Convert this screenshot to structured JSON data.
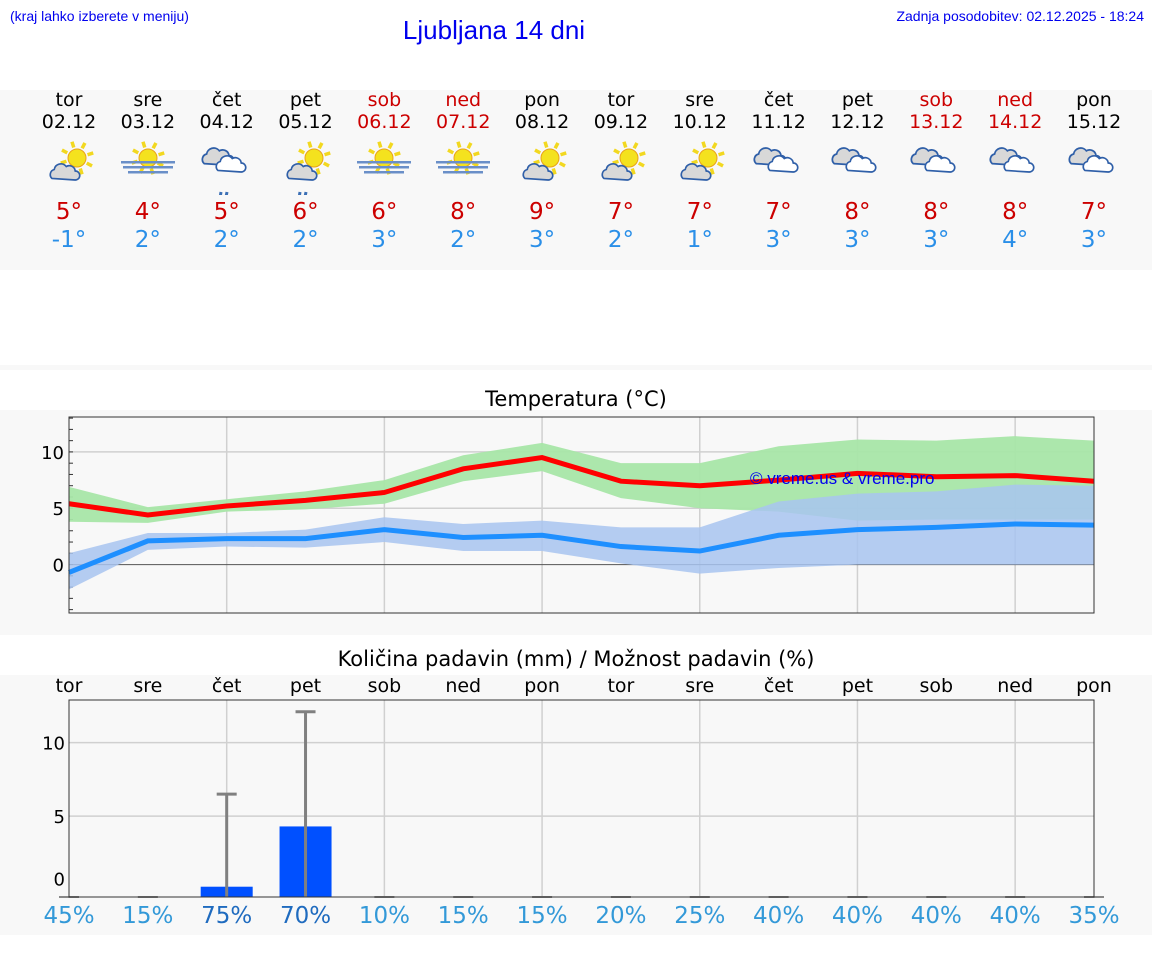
{
  "header": {
    "hint": "(kraj lahko izberete v meniju)",
    "title": "Ljubljana 14 dni",
    "updated": "Zadnja posodobitev: 02.12.2025 - 18:24"
  },
  "days": [
    {
      "name": "tor",
      "date": "02.12",
      "weekend": false,
      "icon": "partly-cloudy-icon",
      "max": "5°",
      "min": "-1°"
    },
    {
      "name": "sre",
      "date": "03.12",
      "weekend": false,
      "icon": "sun-fog-icon",
      "max": "4°",
      "min": "2°"
    },
    {
      "name": "čet",
      "date": "04.12",
      "weekend": false,
      "icon": "cloudy-rain-icon",
      "max": "5°",
      "min": "2°"
    },
    {
      "name": "pet",
      "date": "05.12",
      "weekend": false,
      "icon": "partly-cloudy-rain-icon",
      "max": "6°",
      "min": "2°"
    },
    {
      "name": "sob",
      "date": "06.12",
      "weekend": true,
      "icon": "sun-fog-icon",
      "max": "6°",
      "min": "3°"
    },
    {
      "name": "ned",
      "date": "07.12",
      "weekend": true,
      "icon": "sun-fog-icon",
      "max": "8°",
      "min": "2°"
    },
    {
      "name": "pon",
      "date": "08.12",
      "weekend": false,
      "icon": "partly-cloudy-icon",
      "max": "9°",
      "min": "3°"
    },
    {
      "name": "tor",
      "date": "09.12",
      "weekend": false,
      "icon": "partly-cloudy-icon",
      "max": "7°",
      "min": "2°"
    },
    {
      "name": "sre",
      "date": "10.12",
      "weekend": false,
      "icon": "partly-cloudy-icon",
      "max": "7°",
      "min": "1°"
    },
    {
      "name": "čet",
      "date": "11.12",
      "weekend": false,
      "icon": "cloudy-icon",
      "max": "7°",
      "min": "3°"
    },
    {
      "name": "pet",
      "date": "12.12",
      "weekend": false,
      "icon": "cloudy-icon",
      "max": "8°",
      "min": "3°"
    },
    {
      "name": "sob",
      "date": "13.12",
      "weekend": true,
      "icon": "cloudy-icon",
      "max": "8°",
      "min": "3°"
    },
    {
      "name": "ned",
      "date": "14.12",
      "weekend": true,
      "icon": "cloudy-icon",
      "max": "8°",
      "min": "4°"
    },
    {
      "name": "pon",
      "date": "15.12",
      "weekend": false,
      "icon": "cloudy-icon",
      "max": "7°",
      "min": "3°"
    }
  ],
  "chart_data": [
    {
      "type": "line",
      "title": "Temperatura (°C)",
      "watermark": "© vreme.us & vreme.pro",
      "ylim": [
        -4.3,
        13.1
      ],
      "yticks": [
        "10",
        "5",
        "0"
      ],
      "ytick_values": [
        10,
        5,
        0
      ],
      "grid": true,
      "series": [
        {
          "key": "max",
          "color": "#ff0000",
          "band_color": "#a8e6a8",
          "values": [
            5.4,
            4.4,
            5.2,
            5.7,
            6.4,
            8.5,
            9.5,
            7.4,
            7.0,
            7.5,
            8.1,
            7.8,
            7.9,
            7.4
          ],
          "band_high": [
            6.9,
            5.1,
            5.8,
            6.5,
            7.5,
            9.7,
            10.8,
            9.0,
            9.0,
            10.5,
            11.1,
            11.0,
            11.4,
            11.0
          ],
          "band_low": [
            3.8,
            3.7,
            4.7,
            4.9,
            5.4,
            7.4,
            8.3,
            5.9,
            5.0,
            4.7,
            3.9,
            4.0,
            4.0,
            4.0
          ]
        },
        {
          "key": "min",
          "color": "#1e8fff",
          "band_color": "#a8c4f0",
          "values": [
            -0.7,
            2.1,
            2.3,
            2.3,
            3.1,
            2.4,
            2.6,
            1.6,
            1.2,
            2.6,
            3.1,
            3.3,
            3.6,
            3.5
          ],
          "band_high": [
            1.0,
            2.8,
            2.8,
            3.1,
            4.2,
            3.6,
            3.9,
            3.3,
            3.3,
            5.6,
            6.3,
            6.5,
            7.1,
            7.0
          ],
          "band_low": [
            -2.2,
            1.3,
            1.6,
            1.5,
            2.0,
            1.2,
            1.2,
            0.1,
            -0.8,
            -0.3,
            0,
            0,
            0,
            0
          ]
        }
      ]
    },
    {
      "type": "bar",
      "title": "Količina padavin (mm) / Možnost padavin (%)",
      "categories": [
        "tor",
        "sre",
        "čet",
        "pet",
        "sob",
        "ned",
        "pon",
        "tor",
        "sre",
        "čet",
        "pet",
        "sob",
        "ned",
        "pon"
      ],
      "values": [
        0,
        0,
        0.2,
        4.3,
        0,
        0,
        0,
        0,
        0,
        0,
        0,
        0,
        0,
        0
      ],
      "error_high": [
        0,
        0,
        6.5,
        12.1,
        0,
        0,
        0,
        0,
        0,
        0,
        0,
        0,
        0,
        0
      ],
      "probability": [
        "45%",
        "15%",
        "75%",
        "70%",
        "10%",
        "15%",
        "15%",
        "20%",
        "25%",
        "40%",
        "40%",
        "40%",
        "40%",
        "35%"
      ],
      "ylim": [
        -0.5,
        12.9
      ],
      "yticks": [
        "10",
        "5",
        "0"
      ],
      "ytick_values": [
        10,
        5,
        0
      ],
      "grid": true,
      "bar_color": "#0050ff"
    }
  ]
}
